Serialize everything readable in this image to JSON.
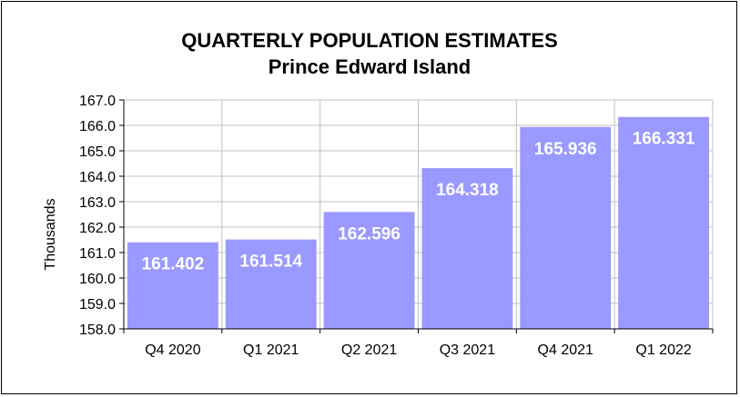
{
  "chart_data": {
    "type": "bar",
    "title": "QUARTERLY POPULATION ESTIMATES",
    "subtitle": "Prince Edward Island",
    "ylabel": "Thousands",
    "xlabel": "",
    "categories": [
      "Q4 2020",
      "Q1 2021",
      "Q2 2021",
      "Q3 2021",
      "Q4 2021",
      "Q1 2022"
    ],
    "values": [
      161.402,
      161.514,
      162.596,
      164.318,
      165.936,
      166.331
    ],
    "value_labels": [
      "161.402",
      "161.514",
      "162.596",
      "164.318",
      "165.936",
      "166.331"
    ],
    "ylim": [
      158.0,
      167.0
    ],
    "yticks": [
      "158.0",
      "159.0",
      "160.0",
      "161.0",
      "162.0",
      "163.0",
      "164.0",
      "165.0",
      "166.0",
      "167.0"
    ],
    "grid": true,
    "legend": "none",
    "colors": {
      "bar": "#9999ff",
      "grid": "#c0c0c0",
      "axis": "#000000",
      "label": "#ffffff"
    }
  }
}
